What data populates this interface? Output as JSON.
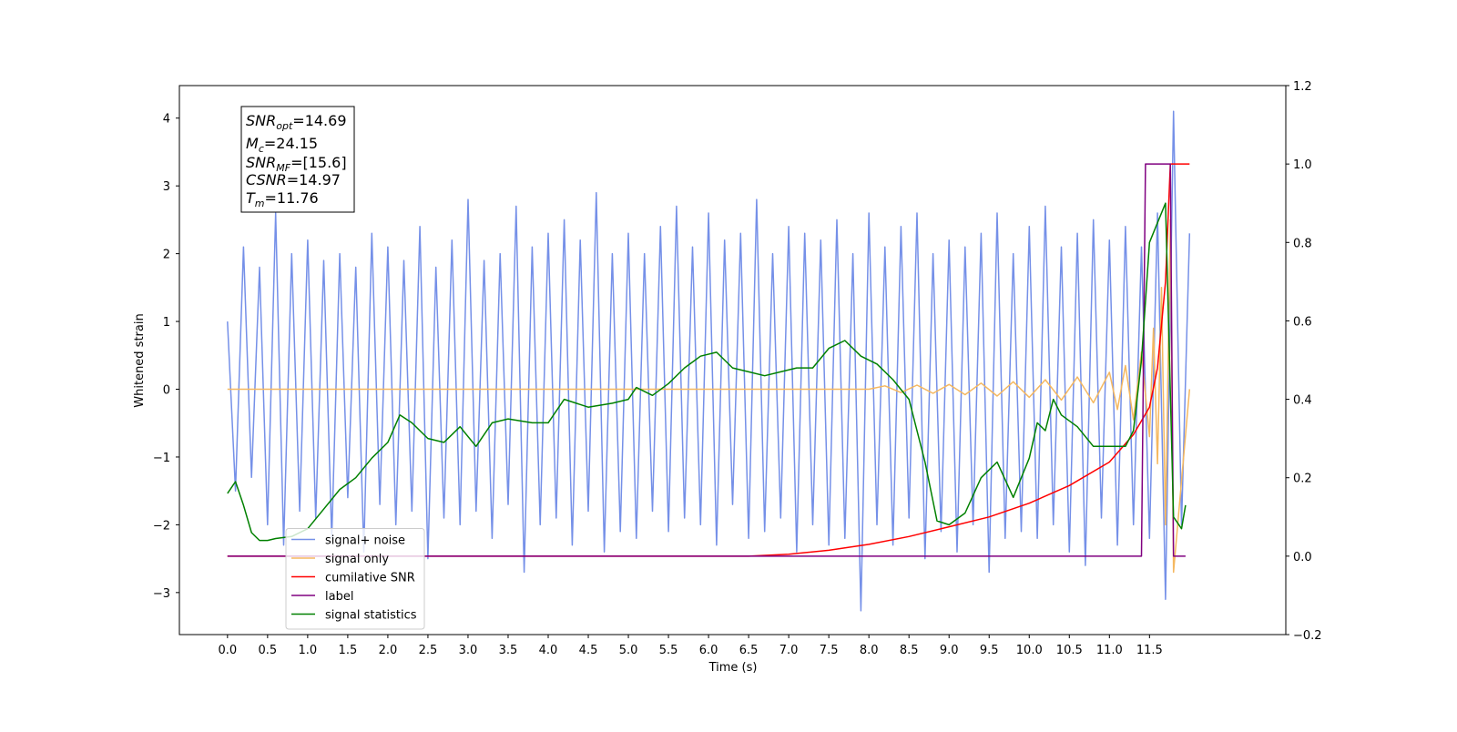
{
  "chart_data": {
    "type": "line",
    "xlabel": "Time (s)",
    "ylabel": "Whitened strain",
    "xlim": [
      -0.6,
      13.2
    ],
    "ylim": [
      -3.62,
      4.48
    ],
    "y2lim": [
      -0.2,
      1.2
    ],
    "xticks": [
      {
        "value": 0,
        "label": "0.0"
      },
      0.5,
      {
        "value": 1,
        "label": "1.0"
      },
      1.5,
      {
        "value": 2,
        "label": "2.0"
      },
      2.5,
      {
        "value": 3,
        "label": "3.0"
      },
      3.5,
      {
        "value": 4,
        "label": "4.0"
      },
      4.5,
      {
        "value": 5,
        "label": "5.0"
      },
      5.5,
      {
        "value": 6,
        "label": "6.0"
      },
      6.5,
      {
        "value": 7,
        "label": "7.0"
      },
      7.5,
      {
        "value": 8,
        "label": "8.0"
      },
      8.5,
      {
        "value": 9,
        "label": "9.0"
      },
      9.5,
      {
        "value": 10,
        "label": "10.0"
      },
      10.5,
      {
        "value": 11,
        "label": "11.0"
      },
      11.5
    ],
    "yticks": [
      {
        "value": -3,
        "label": "−3"
      },
      {
        "value": -2,
        "label": "−2"
      },
      {
        "value": -1,
        "label": "−1"
      },
      0,
      1,
      2,
      3,
      4
    ],
    "y2ticks": [
      {
        "value": -0.2,
        "label": "−0.2"
      },
      {
        "value": 0,
        "label": "0.0"
      },
      0.2,
      0.4,
      0.6,
      0.8,
      {
        "value": 1,
        "label": "1.0"
      },
      1.2
    ],
    "legend": "lower left",
    "annotations": [
      {
        "name": "SNR",
        "sub": "opt",
        "text": "=14.69"
      },
      {
        "name": "M",
        "sub": "c",
        "text": "=24.15"
      },
      {
        "name": "SNR",
        "sub": "MF",
        "text": "=[15.6]"
      },
      {
        "name": "CSNR",
        "text": "=14.97"
      },
      {
        "name": "T",
        "sub": "m",
        "text": "=11.76"
      }
    ],
    "x": [
      0,
      0.1,
      0.2,
      0.3,
      0.4,
      0.5,
      0.6,
      0.7,
      0.8,
      0.9,
      1,
      1.1,
      1.2,
      1.3,
      1.4,
      1.5,
      1.6,
      1.7,
      1.8,
      1.9,
      2,
      2.1,
      2.2,
      2.3,
      2.4,
      2.5,
      2.6,
      2.7,
      2.8,
      2.9,
      3,
      3.1,
      3.2,
      3.3,
      3.4,
      3.5,
      3.6,
      3.7,
      3.8,
      3.9,
      4,
      4.1,
      4.2,
      4.3,
      4.4,
      4.5,
      4.6,
      4.7,
      4.8,
      4.9,
      5,
      5.1,
      5.2,
      5.3,
      5.4,
      5.5,
      5.6,
      5.7,
      5.8,
      5.9,
      6,
      6.1,
      6.2,
      6.3,
      6.4,
      6.5,
      6.6,
      6.7,
      6.8,
      6.9,
      7,
      7.1,
      7.2,
      7.3,
      7.4,
      7.5,
      7.6,
      7.7,
      7.8,
      7.9,
      8,
      8.1,
      8.2,
      8.3,
      8.4,
      8.5,
      8.6,
      8.7,
      8.8,
      8.9,
      9,
      9.1,
      9.2,
      9.3,
      9.4,
      9.5,
      9.6,
      9.7,
      9.8,
      9.9,
      10,
      10.1,
      10.2,
      10.3,
      10.4,
      10.5,
      10.6,
      10.7,
      10.8,
      10.9,
      11,
      11.1,
      11.2,
      11.3,
      11.4,
      11.5,
      11.6,
      11.7,
      11.8,
      11.9,
      12
    ],
    "series": [
      {
        "name": "signal+ noise",
        "color": "#7590e8",
        "values": [
          1.0,
          -1.5,
          2.1,
          -1.3,
          1.8,
          -2.0,
          2.6,
          -2.3,
          2.0,
          -1.8,
          2.2,
          -1.9,
          1.9,
          -2.2,
          2.0,
          -1.6,
          1.8,
          -2.4,
          2.3,
          -1.7,
          2.1,
          -2.0,
          1.9,
          -1.8,
          2.4,
          -2.5,
          1.8,
          -1.9,
          2.2,
          -2.0,
          2.8,
          -1.8,
          1.9,
          -2.2,
          2.0,
          -1.7,
          2.7,
          -2.7,
          2.1,
          -2.0,
          2.3,
          -1.9,
          2.5,
          -2.3,
          2.2,
          -1.8,
          2.9,
          -2.4,
          2.0,
          -2.1,
          2.3,
          -2.2,
          2.0,
          -1.8,
          2.4,
          -2.1,
          2.7,
          -1.9,
          2.1,
          -2.0,
          2.6,
          -2.3,
          2.2,
          -1.7,
          2.3,
          -2.2,
          2.8,
          -2.1,
          2.0,
          -1.9,
          2.4,
          -2.4,
          2.3,
          -2.0,
          2.2,
          -2.3,
          2.5,
          -2.2,
          2.0,
          -3.27,
          2.6,
          -2.0,
          2.1,
          -2.3,
          2.4,
          -1.9,
          2.6,
          -2.5,
          2.0,
          -2.1,
          2.2,
          -2.4,
          2.1,
          -2.0,
          2.3,
          -2.7,
          2.6,
          -2.2,
          2.0,
          -2.1,
          2.4,
          -2.2,
          2.7,
          -2.0,
          2.1,
          -2.4,
          2.3,
          -2.6,
          2.5,
          -1.9,
          2.2,
          -2.3,
          2.4,
          -2.0,
          2.1,
          -2.2,
          2.6,
          -3.1,
          4.1,
          -2.0,
          2.3
        ]
      },
      {
        "name": "signal only",
        "color": "#f5b860",
        "x": [
          0,
          8.0,
          8.2,
          8.4,
          8.6,
          8.8,
          9.0,
          9.2,
          9.4,
          9.6,
          9.8,
          10.0,
          10.2,
          10.4,
          10.6,
          10.8,
          11.0,
          11.1,
          11.2,
          11.3,
          11.4,
          11.5,
          11.55,
          11.6,
          11.65,
          11.7,
          11.76,
          11.8,
          12.0
        ],
        "values": [
          0,
          0,
          0.05,
          -0.05,
          0.06,
          -0.06,
          0.07,
          -0.08,
          0.09,
          -0.1,
          0.11,
          -0.12,
          0.14,
          -0.16,
          0.18,
          -0.2,
          0.25,
          -0.3,
          0.35,
          -0.45,
          0.55,
          -0.7,
          0.9,
          -1.1,
          1.5,
          -2.0,
          2.5,
          -2.7,
          0
        ]
      },
      {
        "name": "cumilative SNR",
        "color": "#ff0000",
        "axis": "y2",
        "x": [
          0,
          6.5,
          7.0,
          7.5,
          8.0,
          8.5,
          9.0,
          9.5,
          10.0,
          10.5,
          11.0,
          11.3,
          11.5,
          11.6,
          11.7,
          11.76,
          12.0
        ],
        "values": [
          0,
          0,
          0.005,
          0.015,
          0.03,
          0.05,
          0.075,
          0.1,
          0.135,
          0.18,
          0.24,
          0.31,
          0.38,
          0.48,
          0.7,
          1.0,
          1.0
        ]
      },
      {
        "name": "label",
        "color": "#800080",
        "axis": "y2",
        "x": [
          0,
          11.4,
          11.45,
          11.76,
          11.8,
          11.95
        ],
        "values": [
          0,
          0,
          1,
          1,
          0,
          0
        ]
      },
      {
        "name": "signal statistics",
        "color": "#008000",
        "axis": "y2",
        "x": [
          0,
          0.1,
          0.2,
          0.3,
          0.4,
          0.5,
          0.6,
          0.8,
          1.0,
          1.2,
          1.4,
          1.6,
          1.8,
          2.0,
          2.15,
          2.3,
          2.5,
          2.7,
          2.9,
          3.1,
          3.3,
          3.5,
          3.8,
          4.0,
          4.2,
          4.5,
          4.8,
          5.0,
          5.1,
          5.3,
          5.5,
          5.7,
          5.9,
          6.1,
          6.3,
          6.5,
          6.7,
          6.9,
          7.1,
          7.3,
          7.5,
          7.7,
          7.9,
          8.1,
          8.3,
          8.5,
          8.7,
          8.85,
          9.0,
          9.2,
          9.4,
          9.6,
          9.8,
          10.0,
          10.1,
          10.2,
          10.3,
          10.4,
          10.6,
          10.8,
          11.0,
          11.2,
          11.3,
          11.4,
          11.5,
          11.6,
          11.7,
          11.8,
          11.9,
          11.95
        ],
        "values": [
          0.16,
          0.19,
          0.13,
          0.06,
          0.04,
          0.04,
          0.045,
          0.05,
          0.07,
          0.12,
          0.17,
          0.2,
          0.25,
          0.29,
          0.36,
          0.34,
          0.3,
          0.29,
          0.33,
          0.28,
          0.34,
          0.35,
          0.34,
          0.34,
          0.4,
          0.38,
          0.39,
          0.4,
          0.43,
          0.41,
          0.44,
          0.48,
          0.51,
          0.52,
          0.48,
          0.47,
          0.46,
          0.47,
          0.48,
          0.48,
          0.53,
          0.55,
          0.51,
          0.49,
          0.45,
          0.4,
          0.24,
          0.09,
          0.08,
          0.11,
          0.2,
          0.24,
          0.15,
          0.25,
          0.34,
          0.32,
          0.4,
          0.36,
          0.33,
          0.28,
          0.28,
          0.28,
          0.32,
          0.5,
          0.8,
          0.85,
          0.9,
          0.1,
          0.07,
          0.13
        ]
      }
    ]
  }
}
